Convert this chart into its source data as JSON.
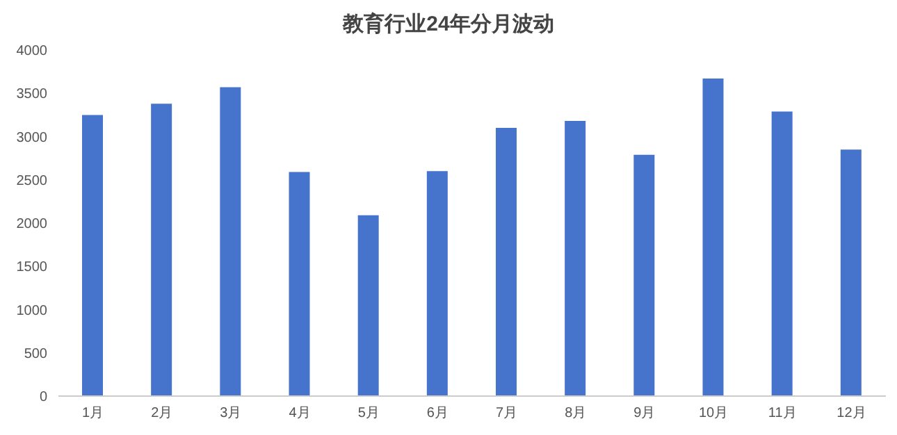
{
  "chart_data": {
    "type": "bar",
    "title": "教育行业24年分月波动",
    "categories": [
      "1月",
      "2月",
      "3月",
      "4月",
      "5月",
      "6月",
      "7月",
      "8月",
      "9月",
      "10月",
      "11月",
      "12月"
    ],
    "values": [
      3250,
      3380,
      3570,
      2590,
      2090,
      2600,
      3100,
      3180,
      2790,
      3670,
      3290,
      2850
    ],
    "color": "#4674cc",
    "ylim": [
      0,
      4000
    ],
    "yticks": [
      0,
      500,
      1000,
      1500,
      2000,
      2500,
      3000,
      3500,
      4000
    ],
    "grid": false,
    "legend": false
  }
}
